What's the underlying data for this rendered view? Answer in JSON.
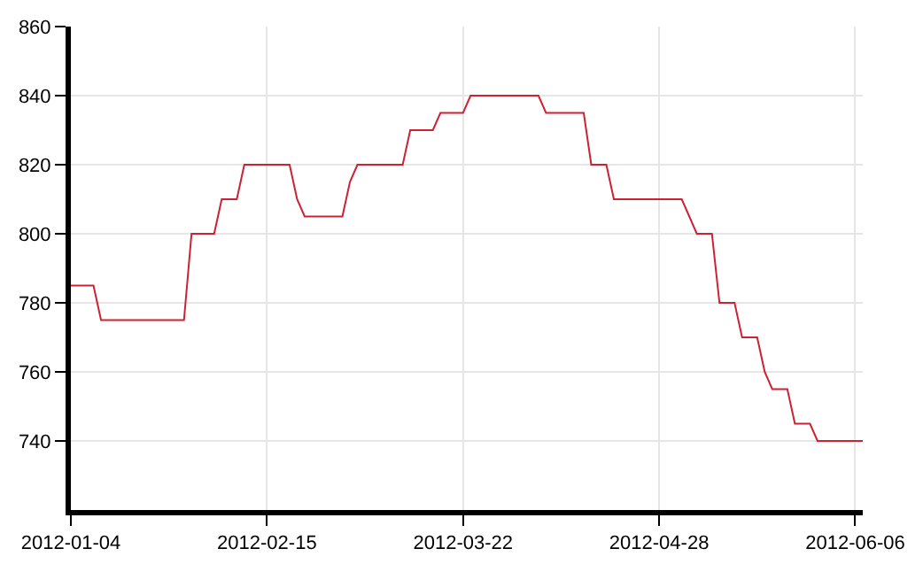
{
  "chart_data": {
    "type": "line",
    "categories": [
      "2012-01-04",
      null,
      null,
      null,
      null,
      null,
      null,
      null,
      null,
      null,
      null,
      null,
      null,
      null,
      null,
      null,
      null,
      null,
      null,
      null,
      null,
      null,
      null,
      null,
      null,
      null,
      "2012-02-15",
      null,
      null,
      null,
      null,
      null,
      null,
      null,
      null,
      null,
      null,
      null,
      null,
      null,
      null,
      null,
      null,
      null,
      null,
      null,
      null,
      null,
      null,
      null,
      null,
      null,
      "2012-03-22",
      null,
      null,
      null,
      null,
      null,
      null,
      null,
      null,
      null,
      null,
      null,
      null,
      null,
      null,
      null,
      null,
      null,
      null,
      null,
      null,
      null,
      null,
      null,
      null,
      null,
      "2012-04-28",
      null,
      null,
      null,
      null,
      null,
      null,
      null,
      null,
      null,
      null,
      null,
      null,
      null,
      null,
      null,
      null,
      null,
      null,
      null,
      null,
      null,
      null,
      null,
      null,
      null,
      "2012-06-06",
      null
    ],
    "series": [
      {
        "color": "#cc2233",
        "values": [
          785,
          785,
          785,
          785,
          775,
          775,
          775,
          775,
          775,
          775,
          775,
          775,
          775,
          775,
          775,
          775,
          800,
          800,
          800,
          800,
          810,
          810,
          810,
          820,
          820,
          820,
          820,
          820,
          820,
          820,
          810,
          805,
          805,
          805,
          805,
          805,
          805,
          815,
          820,
          820,
          820,
          820,
          820,
          820,
          820,
          830,
          830,
          830,
          830,
          835,
          835,
          835,
          835,
          840,
          840,
          840,
          840,
          840,
          840,
          840,
          840,
          840,
          840,
          835,
          835,
          835,
          835,
          835,
          835,
          820,
          820,
          820,
          810,
          810,
          810,
          810,
          810,
          810,
          810,
          810,
          810,
          810,
          805,
          800,
          800,
          800,
          780,
          780,
          780,
          770,
          770,
          770,
          760,
          755,
          755,
          755,
          745,
          745,
          745,
          740,
          740,
          740,
          740,
          740,
          740,
          740
        ]
      }
    ],
    "ylim": [
      720,
      860
    ],
    "yticks": [
      740,
      760,
      780,
      800,
      820,
      840,
      860
    ],
    "grid": true,
    "legend": false,
    "marker": "none",
    "line_style": "solid"
  }
}
